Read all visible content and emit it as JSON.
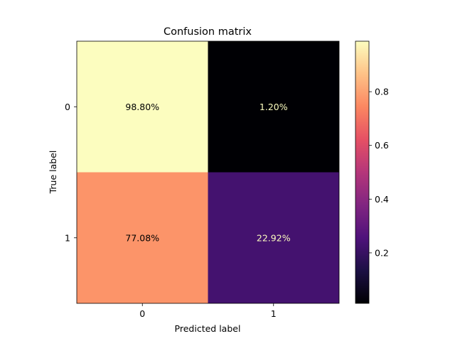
{
  "chart_data": {
    "type": "heatmap",
    "title": "Confusion matrix",
    "xlabel": "Predicted label",
    "ylabel": "True label",
    "x_categories": [
      "0",
      "1"
    ],
    "y_categories": [
      "0",
      "1"
    ],
    "values": [
      [
        0.988,
        0.012
      ],
      [
        0.7708,
        0.2292
      ]
    ],
    "cell_labels": [
      [
        "98.80%",
        "1.20%"
      ],
      [
        "77.08%",
        "22.92%"
      ]
    ],
    "colormap": "magma",
    "colorbar": {
      "range": [
        0.012,
        0.988
      ],
      "ticks": [
        0.2,
        0.4,
        0.6,
        0.8
      ],
      "tick_labels": [
        "0.2",
        "0.4",
        "0.6",
        "0.8"
      ]
    }
  }
}
